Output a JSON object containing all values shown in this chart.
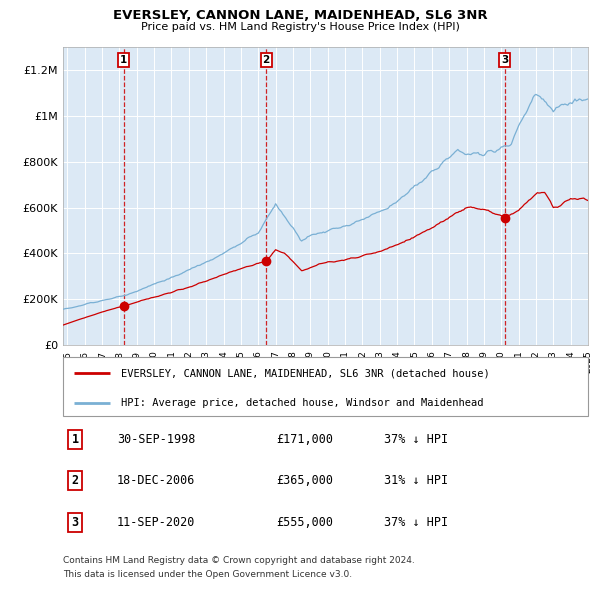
{
  "title": "EVERSLEY, CANNON LANE, MAIDENHEAD, SL6 3NR",
  "subtitle": "Price paid vs. HM Land Registry's House Price Index (HPI)",
  "legend_red": "EVERSLEY, CANNON LANE, MAIDENHEAD, SL6 3NR (detached house)",
  "legend_blue": "HPI: Average price, detached house, Windsor and Maidenhead",
  "table": [
    {
      "num": 1,
      "date": "30-SEP-1998",
      "price": "£171,000",
      "hpi": "37% ↓ HPI"
    },
    {
      "num": 2,
      "date": "18-DEC-2006",
      "price": "£365,000",
      "hpi": "31% ↓ HPI"
    },
    {
      "num": 3,
      "date": "11-SEP-2020",
      "price": "£555,000",
      "hpi": "37% ↓ HPI"
    }
  ],
  "footnote1": "Contains HM Land Registry data © Crown copyright and database right 2024.",
  "footnote2": "This data is licensed under the Open Government Licence v3.0.",
  "sale_dates": [
    1998.75,
    2006.96,
    2020.69
  ],
  "sale_prices": [
    171000,
    365000,
    555000
  ],
  "ylim": [
    0,
    1300000
  ],
  "xlim_start": 1995.25,
  "xlim_end": 2025.5,
  "background_color": "#dce9f5",
  "red_color": "#cc0000",
  "blue_color": "#7ab0d4",
  "grid_color": "#ffffff",
  "vline_color": "#cc0000",
  "yticks": [
    0,
    200000,
    400000,
    600000,
    800000,
    1000000,
    1200000
  ],
  "ylabels": [
    "£0",
    "£200K",
    "£400K",
    "£600K",
    "£800K",
    "£1M",
    "£1.2M"
  ]
}
